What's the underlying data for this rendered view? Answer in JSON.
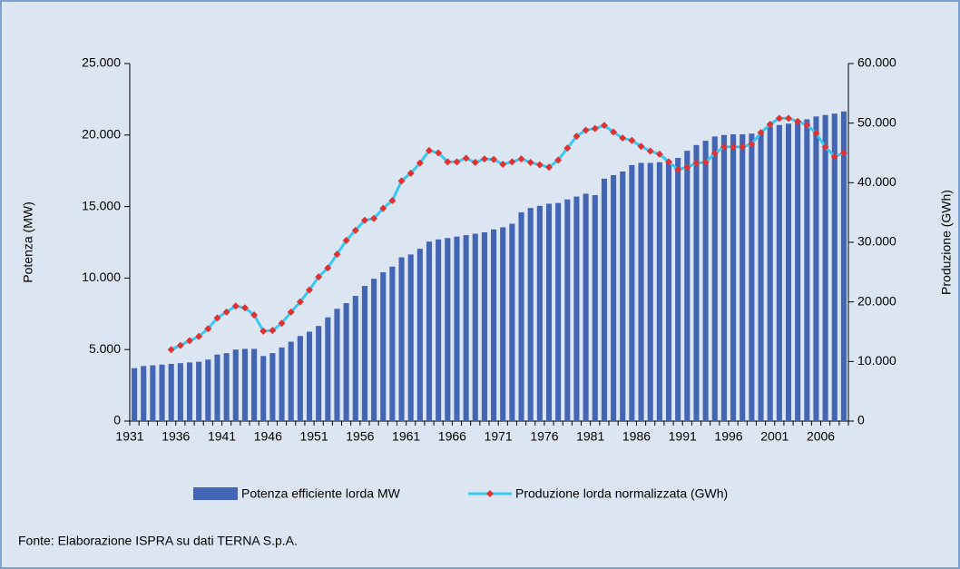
{
  "chart_data": {
    "type": "bar_line",
    "source": "Fonte: Elaborazione ISPRA su dati TERNA S.p.A.",
    "ylabel": "Potenza (MW)",
    "y2label": "Produzione (GWh)",
    "categories": [
      "1931",
      null,
      null,
      null,
      null,
      "1936",
      null,
      null,
      null,
      null,
      "1941",
      null,
      null,
      null,
      null,
      "1946",
      null,
      null,
      null,
      null,
      "1951",
      null,
      null,
      null,
      null,
      "1956",
      null,
      null,
      null,
      null,
      "1961",
      null,
      null,
      null,
      null,
      "1966",
      null,
      null,
      null,
      null,
      "1971",
      null,
      null,
      null,
      null,
      "1976",
      null,
      null,
      null,
      null,
      "1981",
      null,
      null,
      null,
      null,
      "1986",
      null,
      null,
      null,
      null,
      "1991",
      null,
      null,
      null,
      null,
      "1996",
      null,
      null,
      null,
      null,
      "2001",
      null,
      null,
      null,
      null,
      "2006",
      null,
      null
    ],
    "series": [
      {
        "name": "Potenza efficiente lorda MW",
        "color": "#4464b4",
        "values": [
          3700,
          3850,
          3900,
          3950,
          4000,
          4050,
          4100,
          4150,
          4300,
          4650,
          4750,
          5000,
          5050,
          5050,
          4550,
          4750,
          5150,
          5550,
          5950,
          6250,
          6650,
          7250,
          7850,
          8250,
          8750,
          9450,
          9950,
          10400,
          10800,
          11450,
          11650,
          12050,
          12550,
          12700,
          12800,
          12900,
          13000,
          13100,
          13200,
          13400,
          13550,
          13800,
          14600,
          14900,
          15050,
          15200,
          15250,
          15500,
          15700,
          15900,
          15800,
          16950,
          17200,
          17450,
          17900,
          18050,
          18050,
          18100,
          18200,
          18400,
          18900,
          19300,
          19600,
          19900,
          20000,
          20050,
          20050,
          20100,
          20250,
          20600,
          20700,
          20800,
          21000,
          21100,
          21300,
          21400,
          21500,
          21650
        ]
      },
      {
        "name": "Produzione lorda normalizzata (GWh)",
        "color": "#38c8f0",
        "marker_color": "#e03232",
        "axis": "y2",
        "values": [
          null,
          null,
          null,
          null,
          12000,
          12700,
          13500,
          14200,
          15500,
          17300,
          18300,
          19300,
          19000,
          17800,
          15100,
          15200,
          16400,
          18300,
          20000,
          22000,
          24200,
          25700,
          28000,
          30300,
          32000,
          33700,
          34000,
          35700,
          37000,
          40300,
          41600,
          43300,
          45400,
          45000,
          43500,
          43500,
          44100,
          43400,
          44000,
          43900,
          43100,
          43500,
          44000,
          43400,
          43000,
          42600,
          43800,
          45800,
          47800,
          48800,
          49100,
          49600,
          48500,
          47500,
          47100,
          46100,
          45300,
          44800,
          43500,
          42200,
          42600,
          43300,
          43400,
          44900,
          46000,
          46000,
          46000,
          46500,
          48400,
          49800,
          50800,
          50800,
          50300,
          49700,
          48300,
          46000,
          44400,
          45000
        ]
      }
    ],
    "ylim": [
      0,
      25000
    ],
    "yticks": [
      0,
      {
        "value": 5000,
        "label": "5.000"
      },
      {
        "value": 10000,
        "label": "10.000"
      },
      {
        "value": 15000,
        "label": "15.000"
      },
      {
        "value": 20000,
        "label": "20.000"
      },
      {
        "value": 25000,
        "label": "25.000"
      }
    ],
    "y2lim": [
      0,
      60000
    ],
    "y2ticks": [
      0,
      {
        "value": 10000,
        "label": "10.000"
      },
      {
        "value": 20000,
        "label": "20.000"
      },
      {
        "value": 30000,
        "label": "30.000"
      },
      {
        "value": 40000,
        "label": "40.000"
      },
      {
        "value": 50000,
        "label": "50.000"
      },
      {
        "value": 60000,
        "label": "60.000"
      }
    ],
    "legend": "bottom"
  }
}
